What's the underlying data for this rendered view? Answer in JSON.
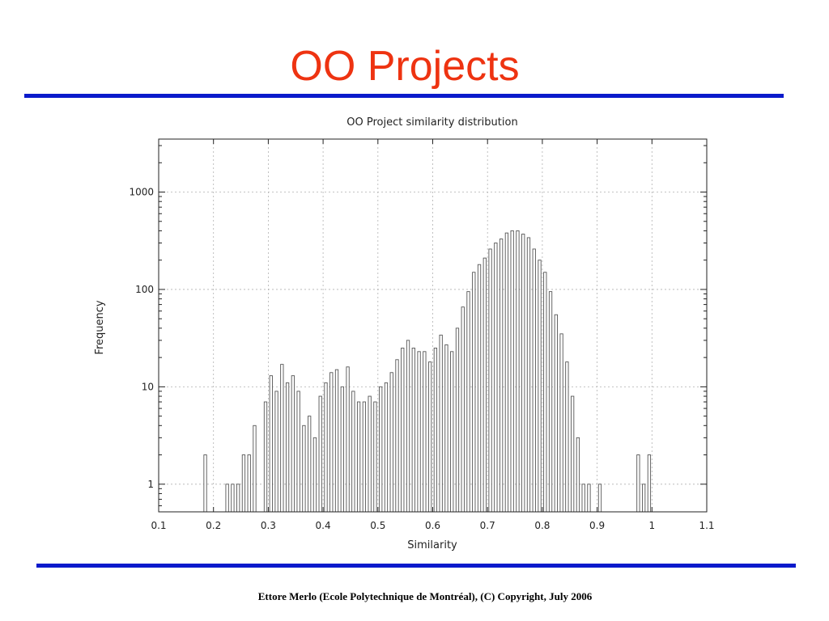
{
  "slide": {
    "title": "OO Projects",
    "footer": "Ettore Merlo (Ecole Polytechnique de Montréal),  (C) Copyright,  July 2006"
  },
  "colors": {
    "title": "#ee3311",
    "rule": "#0b1acb",
    "bar_stroke": "#555555",
    "grid": "#b0b0b0"
  },
  "chart_data": {
    "type": "bar",
    "title": "OO Project similarity distribution",
    "xlabel": "Similarity",
    "ylabel": "Frequency",
    "yscale": "log",
    "xlim": [
      0.1,
      1.1
    ],
    "ylim": [
      0.52,
      3500
    ],
    "bar_width": 0.005,
    "grid": true,
    "x_ticks": [
      0.1,
      0.2,
      0.3,
      0.4,
      0.5,
      0.6,
      0.7,
      0.8,
      0.9,
      1,
      1.1
    ],
    "x_tick_labels": [
      "0.1",
      "0.2",
      "0.3",
      "0.4",
      "0.5",
      "0.6",
      "0.7",
      "0.8",
      "0.9",
      "1",
      "1.1"
    ],
    "y_ticks": [
      1,
      10,
      100,
      1000
    ],
    "y_tick_labels": [
      "1",
      "10",
      "100",
      "1000"
    ],
    "x": [
      0.185,
      0.225,
      0.235,
      0.245,
      0.255,
      0.265,
      0.275,
      0.285,
      0.295,
      0.305,
      0.315,
      0.325,
      0.335,
      0.345,
      0.355,
      0.365,
      0.375,
      0.385,
      0.395,
      0.405,
      0.415,
      0.425,
      0.435,
      0.445,
      0.455,
      0.465,
      0.475,
      0.485,
      0.495,
      0.505,
      0.515,
      0.525,
      0.535,
      0.545,
      0.555,
      0.565,
      0.575,
      0.585,
      0.595,
      0.605,
      0.615,
      0.625,
      0.635,
      0.645,
      0.655,
      0.665,
      0.675,
      0.685,
      0.695,
      0.705,
      0.715,
      0.725,
      0.735,
      0.745,
      0.755,
      0.765,
      0.775,
      0.785,
      0.795,
      0.805,
      0.815,
      0.825,
      0.835,
      0.845,
      0.855,
      0.865,
      0.875,
      0.885,
      0.905,
      0.975,
      0.985,
      0.995
    ],
    "values": [
      2,
      1,
      1,
      1,
      2,
      2,
      4,
      0,
      7,
      13,
      9,
      17,
      11,
      13,
      9,
      4,
      5,
      3,
      8,
      11,
      14,
      15,
      10,
      16,
      9,
      7,
      7,
      8,
      7,
      10,
      11,
      14,
      19,
      25,
      30,
      25,
      23,
      23,
      18,
      25,
      34,
      27,
      23,
      40,
      66,
      95,
      150,
      180,
      210,
      260,
      300,
      330,
      380,
      400,
      400,
      370,
      340,
      260,
      200,
      150,
      95,
      55,
      35,
      18,
      8,
      3,
      1,
      1,
      1,
      2,
      1,
      2
    ]
  }
}
